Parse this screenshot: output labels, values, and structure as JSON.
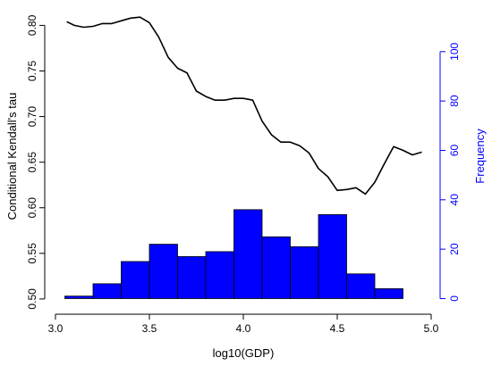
{
  "chart_data": {
    "type": "line",
    "xlabel": "log10(GDP)",
    "ylabel": "Conditional Kendall's tau",
    "ylabel_right": "Frequency",
    "xlim": [
      3.0,
      5.0
    ],
    "ylim": [
      0.495,
      0.82
    ],
    "ylim_right": [
      -2,
      118
    ],
    "xticks": [
      3.0,
      3.5,
      4.0,
      4.5,
      5.0
    ],
    "xtick_labels": [
      "3.0",
      "3.5",
      "4.0",
      "4.5",
      "5.0"
    ],
    "yticks": [
      0.5,
      0.55,
      0.6,
      0.65,
      0.7,
      0.75,
      0.8
    ],
    "ytick_labels": [
      "0.50",
      "0.55",
      "0.60",
      "0.65",
      "0.70",
      "0.75",
      "0.80"
    ],
    "yticks_right": [
      0,
      20,
      40,
      60,
      80,
      100
    ],
    "ytick_labels_right": [
      "0",
      "20",
      "40",
      "60",
      "80",
      "100"
    ],
    "series": [
      {
        "name": "",
        "color": "#000000",
        "x": [
          3.06,
          3.1,
          3.15,
          3.2,
          3.25,
          3.3,
          3.35,
          3.4,
          3.45,
          3.5,
          3.55,
          3.6,
          3.65,
          3.7,
          3.75,
          3.8,
          3.85,
          3.9,
          3.95,
          4.0,
          4.05,
          4.1,
          4.15,
          4.2,
          4.25,
          4.3,
          4.35,
          4.4,
          4.45,
          4.5,
          4.55,
          4.6,
          4.65,
          4.7,
          4.75,
          4.8,
          4.85,
          4.9,
          4.95
        ],
        "y": [
          0.804,
          0.8,
          0.798,
          0.799,
          0.802,
          0.802,
          0.805,
          0.808,
          0.809,
          0.803,
          0.787,
          0.765,
          0.753,
          0.748,
          0.728,
          0.722,
          0.718,
          0.718,
          0.72,
          0.72,
          0.718,
          0.695,
          0.68,
          0.672,
          0.672,
          0.668,
          0.66,
          0.643,
          0.634,
          0.619,
          0.62,
          0.622,
          0.615,
          0.628,
          0.648,
          0.667,
          0.663,
          0.658,
          0.661
        ]
      }
    ],
    "histogram": {
      "color": "#0000ff",
      "edge_color": "#000000",
      "bin_edges": [
        3.05,
        3.2,
        3.35,
        3.5,
        3.65,
        3.8,
        3.95,
        4.1,
        4.25,
        4.4,
        4.55,
        4.7,
        4.85,
        5.0
      ],
      "counts": [
        1,
        6,
        15,
        22,
        17,
        19,
        36,
        25,
        21,
        34,
        10,
        4,
        0
      ]
    }
  }
}
